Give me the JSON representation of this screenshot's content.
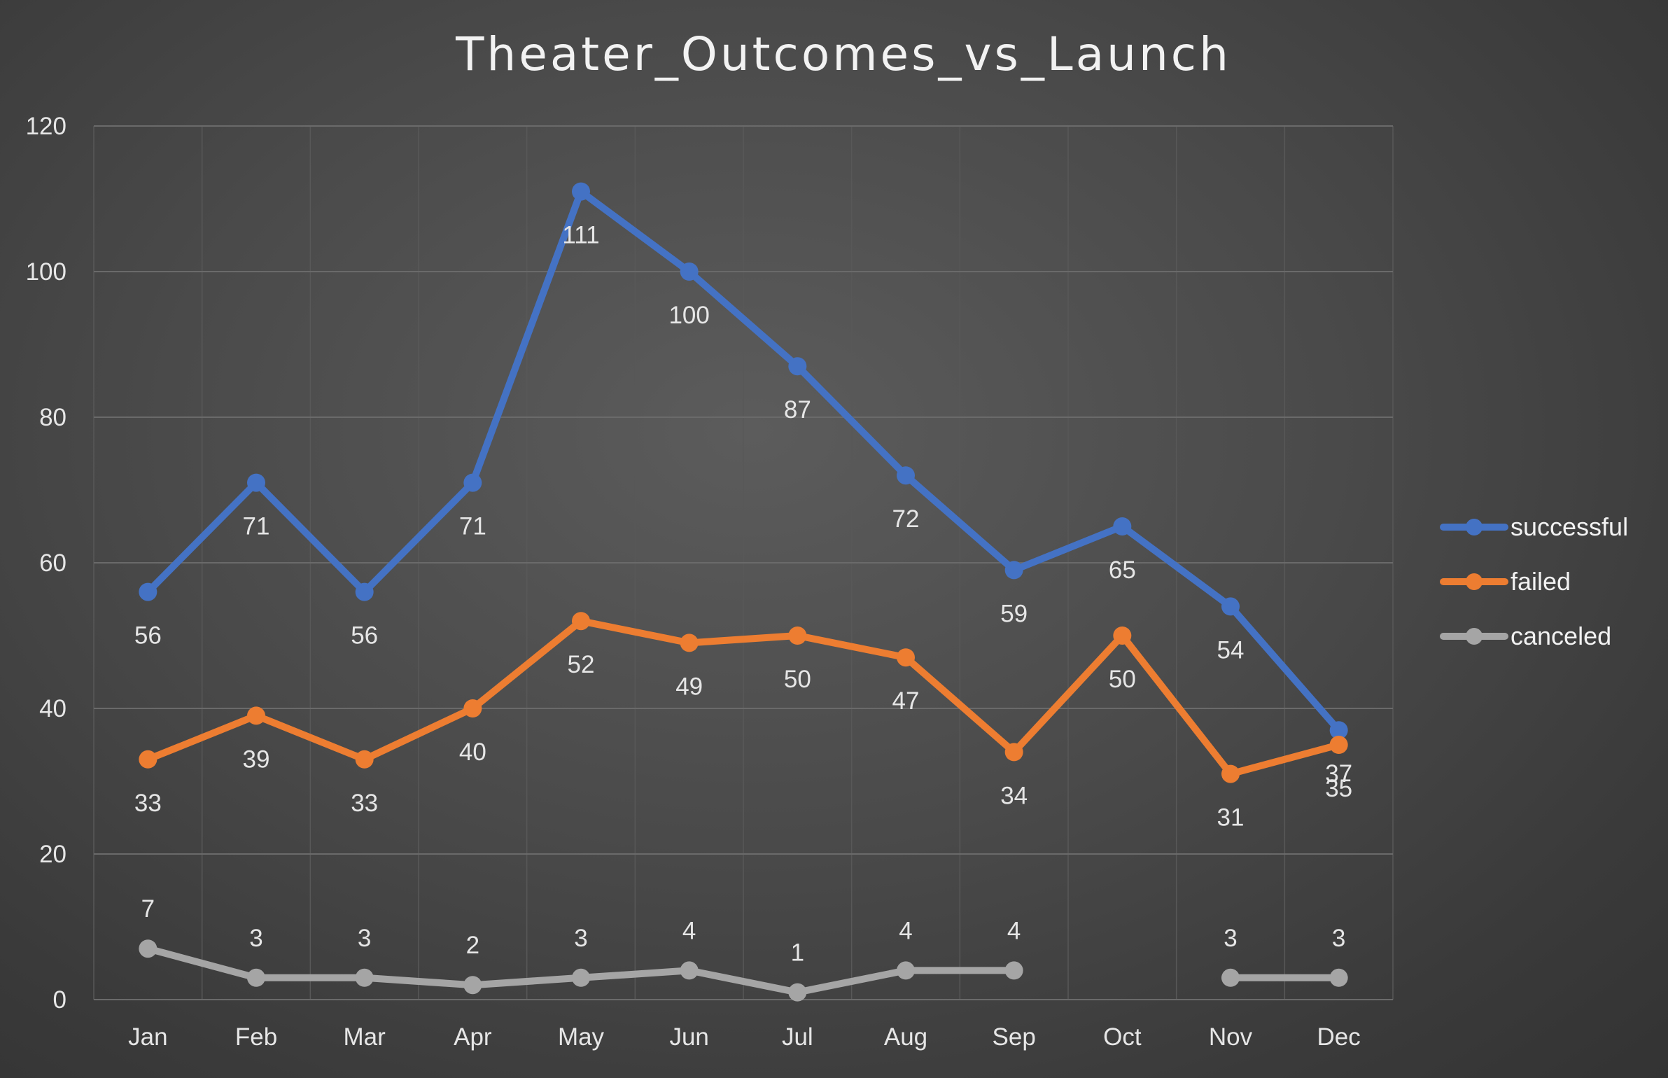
{
  "chart_data": {
    "type": "line",
    "title": "Theater_Outcomes_vs_Launch",
    "xlabel": "",
    "ylabel": "",
    "categories": [
      "Jan",
      "Feb",
      "Mar",
      "Apr",
      "May",
      "Jun",
      "Jul",
      "Aug",
      "Sep",
      "Oct",
      "Nov",
      "Dec"
    ],
    "ylim": [
      0,
      120
    ],
    "yticks": [
      0,
      20,
      40,
      60,
      80,
      100,
      120
    ],
    "grid": true,
    "legend_position": "right",
    "series": [
      {
        "name": "successful",
        "color": "#4472C4",
        "values": [
          56,
          71,
          56,
          71,
          111,
          100,
          87,
          72,
          59,
          65,
          54,
          37
        ],
        "label_position": "below"
      },
      {
        "name": "failed",
        "color": "#ED7D31",
        "values": [
          33,
          39,
          33,
          40,
          52,
          49,
          50,
          47,
          34,
          50,
          31,
          35
        ],
        "label_position": "below"
      },
      {
        "name": "canceled",
        "color": "#A5A5A5",
        "values": [
          7,
          3,
          3,
          2,
          3,
          4,
          1,
          4,
          4,
          null,
          3,
          3
        ],
        "label_position": "above"
      }
    ]
  }
}
